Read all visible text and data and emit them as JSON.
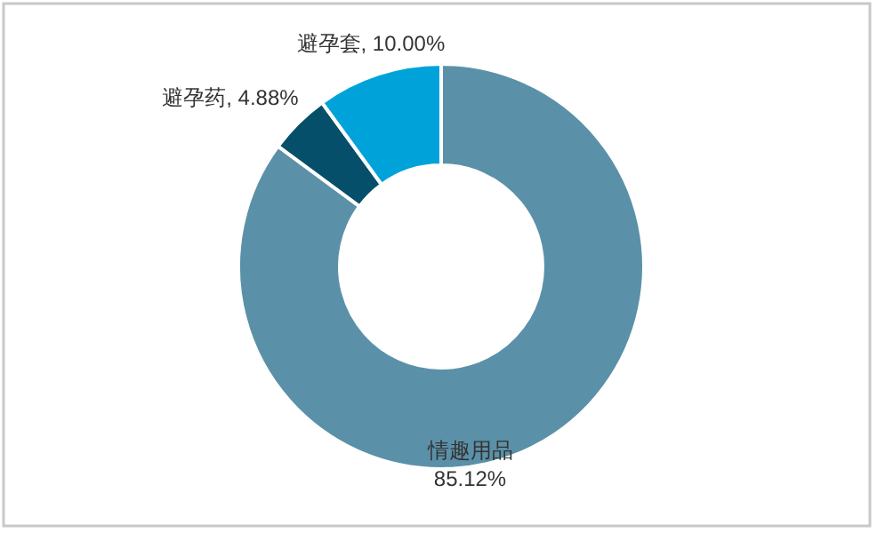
{
  "chart_data": {
    "type": "donut",
    "categories": [
      "情趣用品",
      "避孕药",
      "避孕套"
    ],
    "values": [
      85.12,
      4.88,
      10.0
    ],
    "colors": [
      "#5b91a8",
      "#054f6b",
      "#00a3d9"
    ],
    "value_labels": [
      "85.12%",
      "4.88%",
      "10.00%"
    ]
  }
}
